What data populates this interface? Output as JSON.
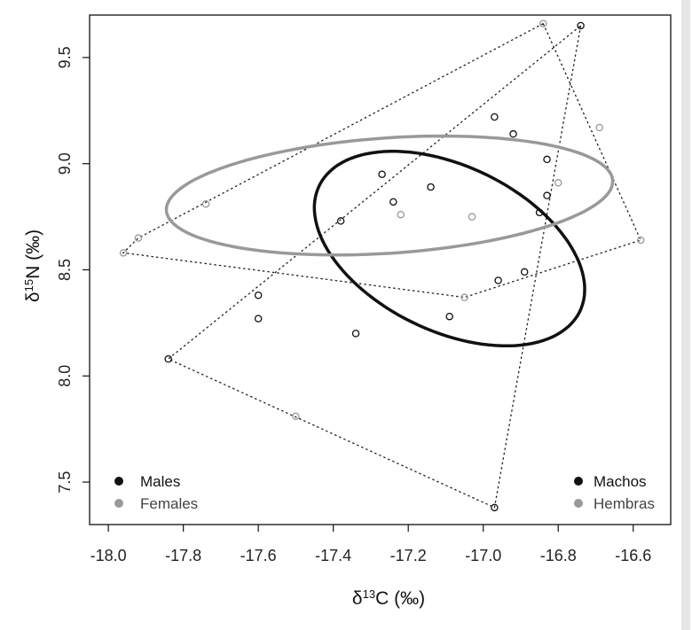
{
  "chart_data": {
    "type": "scatter",
    "xlabel": {
      "prefix": "δ",
      "sup": "13",
      "main": "C (‰)"
    },
    "ylabel": {
      "prefix": "δ",
      "sup": "15",
      "main": "N (‰)"
    },
    "xlim": [
      -18.05,
      -16.5
    ],
    "ylim": [
      7.3,
      9.7
    ],
    "x_ticks": [
      -18.0,
      -17.8,
      -17.6,
      -17.4,
      -17.2,
      -17.0,
      -16.8,
      -16.6
    ],
    "x_tick_labels": [
      "-18.0",
      "-17.8",
      "-17.6",
      "-17.4",
      "-17.2",
      "-17.0",
      "-16.8",
      "-16.6"
    ],
    "y_ticks": [
      7.5,
      8.0,
      8.5,
      9.0,
      9.5
    ],
    "y_tick_labels": [
      "7.5",
      "8.0",
      "8.5",
      "9.0",
      "9.5"
    ],
    "legend_left": [
      {
        "label": "Males",
        "color": "#111111"
      },
      {
        "label": "Females",
        "color": "#999999"
      }
    ],
    "legend_right": [
      {
        "label": "Machos",
        "color": "#111111"
      },
      {
        "label": "Hembras",
        "color": "#999999"
      }
    ],
    "series": [
      {
        "color": "#111111",
        "points": [
          [
            -16.74,
            9.65
          ],
          [
            -16.97,
            9.22
          ],
          [
            -16.92,
            9.14
          ],
          [
            -16.83,
            9.02
          ],
          [
            -16.83,
            8.85
          ],
          [
            -16.85,
            8.77
          ],
          [
            -17.27,
            8.95
          ],
          [
            -17.14,
            8.89
          ],
          [
            -17.24,
            8.82
          ],
          [
            -17.38,
            8.73
          ],
          [
            -16.89,
            8.49
          ],
          [
            -16.96,
            8.45
          ],
          [
            -17.09,
            8.28
          ],
          [
            -17.6,
            8.38
          ],
          [
            -17.6,
            8.27
          ],
          [
            -17.34,
            8.2
          ],
          [
            -17.84,
            8.08
          ],
          [
            -16.97,
            7.38
          ]
        ],
        "hull": [
          [
            -16.74,
            9.65
          ],
          [
            -16.97,
            7.38
          ],
          [
            -17.84,
            8.08
          ]
        ],
        "ellipse": {
          "cx": -17.09,
          "cy": 8.6,
          "rx": 0.3,
          "ry": 0.5,
          "angle_deg": 30
        }
      },
      {
        "color": "#999999",
        "points": [
          [
            -16.84,
            9.66
          ],
          [
            -16.69,
            9.17
          ],
          [
            -16.8,
            8.91
          ],
          [
            -17.22,
            8.76
          ],
          [
            -17.03,
            8.75
          ],
          [
            -17.74,
            8.81
          ],
          [
            -17.92,
            8.65
          ],
          [
            -17.96,
            8.58
          ],
          [
            -16.58,
            8.64
          ],
          [
            -17.05,
            8.37
          ],
          [
            -17.5,
            7.81
          ]
        ],
        "hull": [
          [
            -16.84,
            9.66
          ],
          [
            -16.58,
            8.64
          ],
          [
            -17.05,
            8.37
          ],
          [
            -17.96,
            8.58
          ],
          [
            -17.92,
            8.65
          ]
        ],
        "ellipse": {
          "cx": -17.25,
          "cy": 8.85,
          "rx": 0.6,
          "ry": 0.27,
          "angle_deg": 8
        }
      }
    ]
  }
}
